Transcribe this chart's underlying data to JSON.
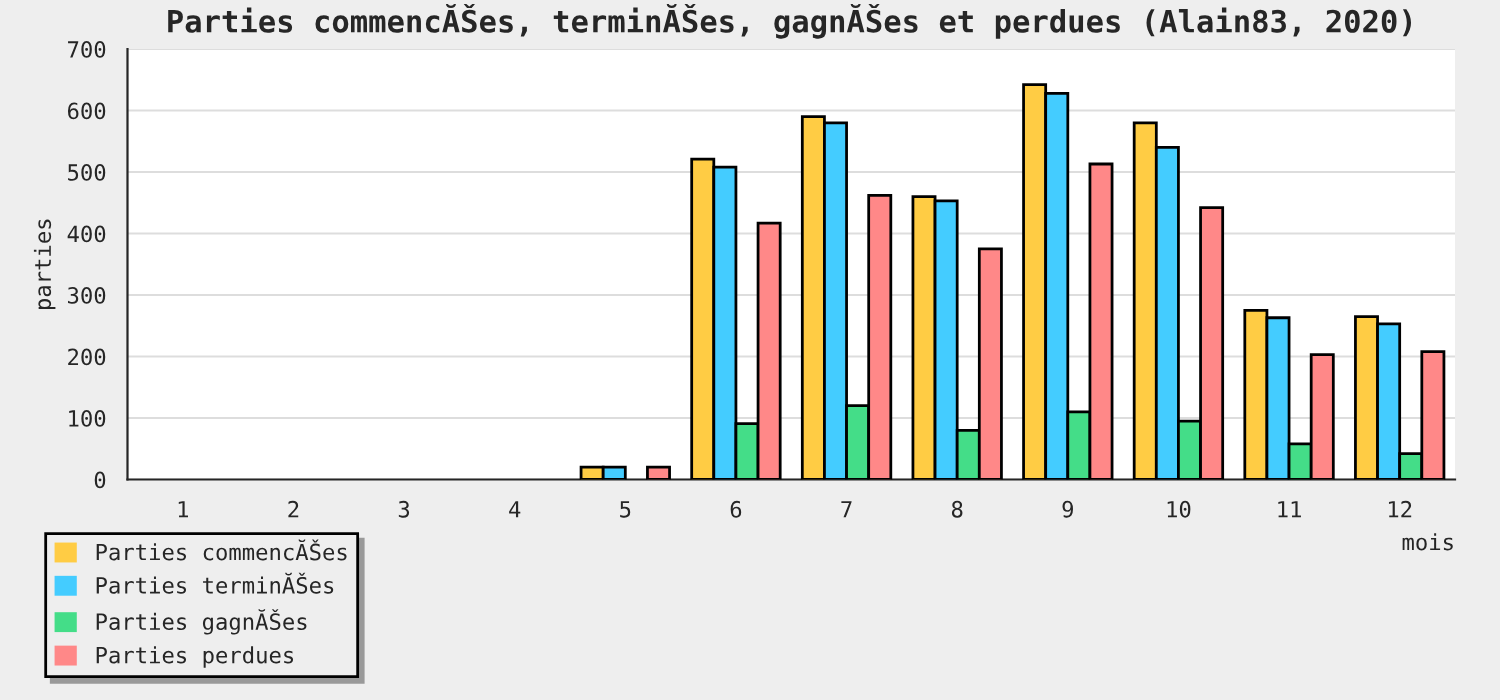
{
  "chart_data": {
    "type": "bar",
    "title": "Parties commencĂŠes, terminĂŠes, gagnĂŠes et perdues (Alain83, 2020)",
    "xlabel": "mois",
    "ylabel": "parties",
    "categories": [
      "1",
      "2",
      "3",
      "4",
      "5",
      "6",
      "7",
      "8",
      "9",
      "10",
      "11",
      "12"
    ],
    "series": [
      {
        "name": "Parties commencĂŠes",
        "color": "#ffcc44",
        "values": [
          0,
          0,
          0,
          0,
          20,
          521,
          590,
          460,
          642,
          580,
          275,
          265
        ]
      },
      {
        "name": "Parties terminĂŠes",
        "color": "#44ccff",
        "values": [
          0,
          0,
          0,
          0,
          20,
          508,
          580,
          453,
          628,
          540,
          263,
          253
        ]
      },
      {
        "name": "Parties gagnĂŠes",
        "color": "#44dd88",
        "values": [
          0,
          0,
          0,
          0,
          0,
          91,
          120,
          80,
          110,
          95,
          58,
          42
        ]
      },
      {
        "name": "Parties perdues",
        "color": "#ff8888",
        "values": [
          0,
          0,
          0,
          0,
          20,
          417,
          462,
          375,
          513,
          442,
          203,
          208
        ]
      }
    ],
    "ylim": [
      0,
      700
    ],
    "yticks": [
      0,
      100,
      200,
      300,
      400,
      500,
      600,
      700
    ],
    "grid": "y",
    "legend": "bottom left"
  }
}
